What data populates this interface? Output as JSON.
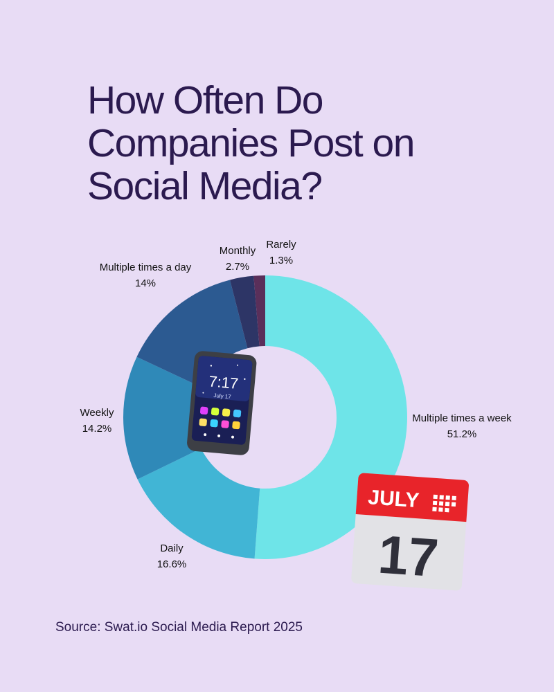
{
  "title_lines": [
    "How Often Do",
    "Companies Post on",
    "Social Media?"
  ],
  "source": "Source: Swat.io Social Media Report 2025",
  "calendar": {
    "month": "JULY",
    "day": "17"
  },
  "phone": {
    "time": "7:17",
    "date": "July 17"
  },
  "chart_data": {
    "type": "pie",
    "donut": true,
    "categories": [
      "Multiple times a week",
      "Daily",
      "Weekly",
      "Multiple times a day",
      "Monthly",
      "Rarely"
    ],
    "values": [
      51.2,
      16.6,
      14.2,
      14,
      2.7,
      1.3
    ],
    "value_labels": [
      "51.2%",
      "16.6%",
      "14.2%",
      "14%",
      "2.7%",
      "1.3%"
    ],
    "colors": [
      "#6ee4e8",
      "#41b5d5",
      "#2f89b8",
      "#2c5a91",
      "#2d3566",
      "#5a2f5a"
    ],
    "title": "How Often Do Companies Post on Social Media?"
  }
}
